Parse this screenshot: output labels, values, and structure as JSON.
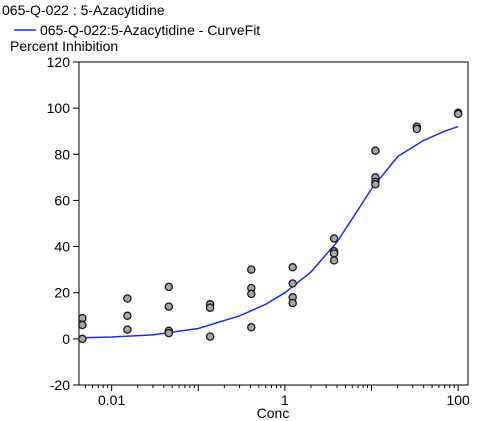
{
  "chart_data": {
    "type": "scatter",
    "title": "065-Q-022  : 5-Azacytidine",
    "legend": {
      "line_label": "065-Q-022:5-Azacytidine - CurveFit",
      "placement": "top-left"
    },
    "ylabel": "Percent Inhibition",
    "xlabel": "Conc",
    "x_scale": "log",
    "xlim": [
      0.0042,
      130
    ],
    "ylim": [
      -20,
      120
    ],
    "x_ticks": [
      {
        "value": 0.01,
        "label": "0.01"
      },
      {
        "value": 1,
        "label": "1"
      },
      {
        "value": 100,
        "label": "100"
      }
    ],
    "y_ticks": [
      {
        "value": -20,
        "label": "-20"
      },
      {
        "value": 0,
        "label": "0"
      },
      {
        "value": 20,
        "label": "20"
      },
      {
        "value": 40,
        "label": "40"
      },
      {
        "value": 60,
        "label": "60"
      },
      {
        "value": 80,
        "label": "80"
      },
      {
        "value": 100,
        "label": "100"
      },
      {
        "value": 120,
        "label": "120"
      }
    ],
    "grid": false,
    "colors": {
      "curve": "#1f2ee6",
      "marker_fill": "#a6a6a6",
      "marker_edge": "#1a1a1a"
    },
    "points": [
      {
        "x": 0.0046,
        "y": 9
      },
      {
        "x": 0.0046,
        "y": 6
      },
      {
        "x": 0.0046,
        "y": 0
      },
      {
        "x": 0.0152,
        "y": 17.5
      },
      {
        "x": 0.0152,
        "y": 10
      },
      {
        "x": 0.0152,
        "y": 4
      },
      {
        "x": 0.0457,
        "y": 22.5
      },
      {
        "x": 0.0457,
        "y": 14
      },
      {
        "x": 0.0457,
        "y": 3.5
      },
      {
        "x": 0.0457,
        "y": 2.5
      },
      {
        "x": 0.137,
        "y": 15
      },
      {
        "x": 0.137,
        "y": 13.5
      },
      {
        "x": 0.137,
        "y": 1
      },
      {
        "x": 0.41,
        "y": 30
      },
      {
        "x": 0.41,
        "y": 22
      },
      {
        "x": 0.41,
        "y": 19.5
      },
      {
        "x": 0.41,
        "y": 5
      },
      {
        "x": 1.23,
        "y": 31
      },
      {
        "x": 1.23,
        "y": 24
      },
      {
        "x": 1.23,
        "y": 18
      },
      {
        "x": 1.23,
        "y": 15.5
      },
      {
        "x": 3.7,
        "y": 43.5
      },
      {
        "x": 3.7,
        "y": 38
      },
      {
        "x": 3.7,
        "y": 37
      },
      {
        "x": 3.7,
        "y": 34
      },
      {
        "x": 11.1,
        "y": 81.5
      },
      {
        "x": 11.1,
        "y": 70
      },
      {
        "x": 11.1,
        "y": 68
      },
      {
        "x": 11.1,
        "y": 67
      },
      {
        "x": 33.3,
        "y": 92
      },
      {
        "x": 33.3,
        "y": 91
      },
      {
        "x": 100,
        "y": 98
      },
      {
        "x": 100,
        "y": 97.5
      }
    ],
    "curve": [
      {
        "x": 0.0046,
        "y": 0.5
      },
      {
        "x": 0.01,
        "y": 0.8
      },
      {
        "x": 0.03,
        "y": 1.7
      },
      {
        "x": 0.1,
        "y": 4.5
      },
      {
        "x": 0.3,
        "y": 10
      },
      {
        "x": 0.6,
        "y": 15
      },
      {
        "x": 1,
        "y": 20
      },
      {
        "x": 2,
        "y": 29
      },
      {
        "x": 4,
        "y": 42
      },
      {
        "x": 7,
        "y": 56
      },
      {
        "x": 10,
        "y": 65
      },
      {
        "x": 20,
        "y": 79
      },
      {
        "x": 40,
        "y": 86
      },
      {
        "x": 70,
        "y": 90
      },
      {
        "x": 100,
        "y": 92
      }
    ]
  }
}
